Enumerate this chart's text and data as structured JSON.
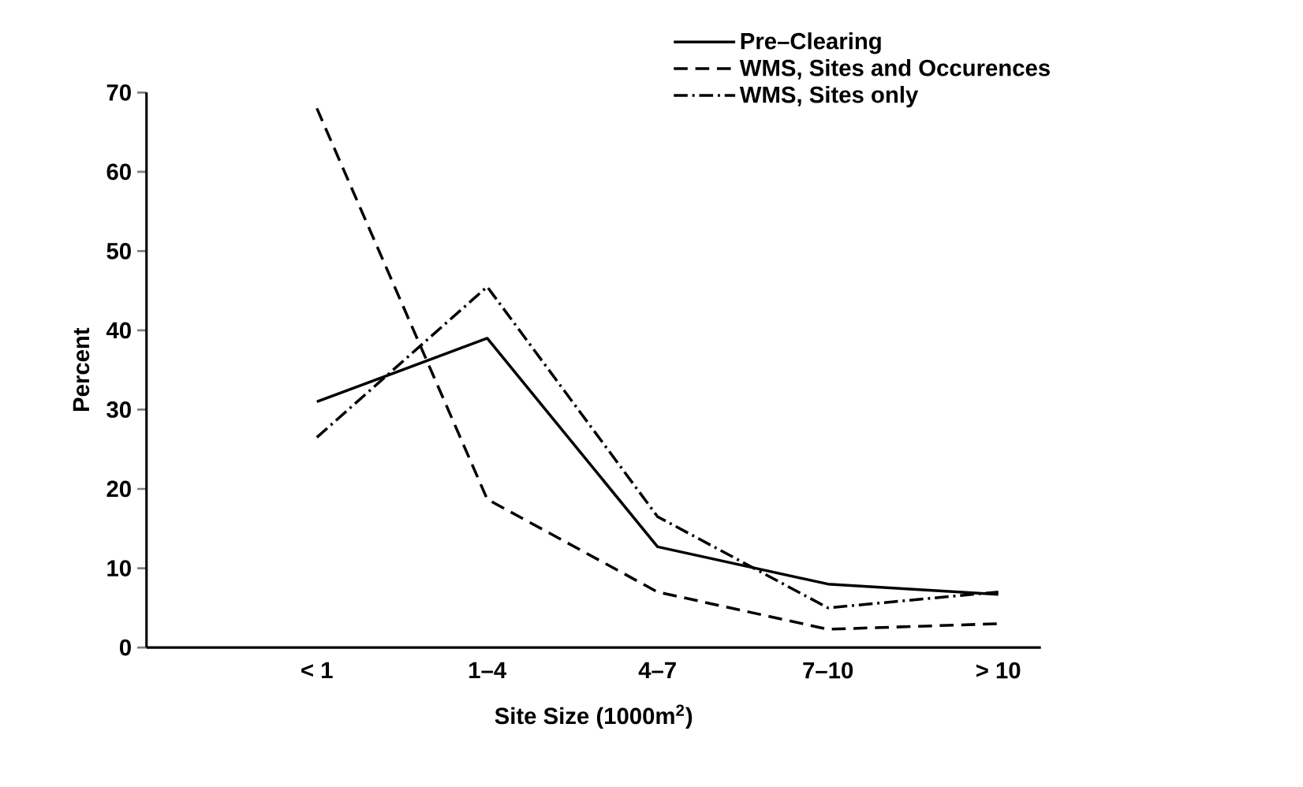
{
  "chart_data": {
    "type": "line",
    "xlabel": "Site Size  (1000m$^{2}$)",
    "ylabel": "Percent",
    "categories": [
      "< 1",
      "1–4",
      "4–7",
      "7–10",
      "> 10"
    ],
    "ylim": [
      0,
      70
    ],
    "yticks": [
      0,
      10,
      20,
      30,
      40,
      50,
      60,
      70
    ],
    "grid": false,
    "legend": "top right",
    "marker": "none",
    "series": [
      {
        "name": "Pre–Clearing",
        "color": "#000000",
        "line_style": "solid",
        "values": [
          31,
          39,
          12.7,
          8,
          6.7
        ]
      },
      {
        "name": "WMS, Sites and Occurences",
        "color": "#000000",
        "line_style": "dashed",
        "values": [
          68,
          18.7,
          7,
          2.3,
          3
        ]
      },
      {
        "name": "WMS, Sites only",
        "color": "#000000",
        "line_style": "dashdot",
        "values": [
          26.5,
          45.5,
          16.5,
          5,
          7
        ]
      }
    ]
  }
}
